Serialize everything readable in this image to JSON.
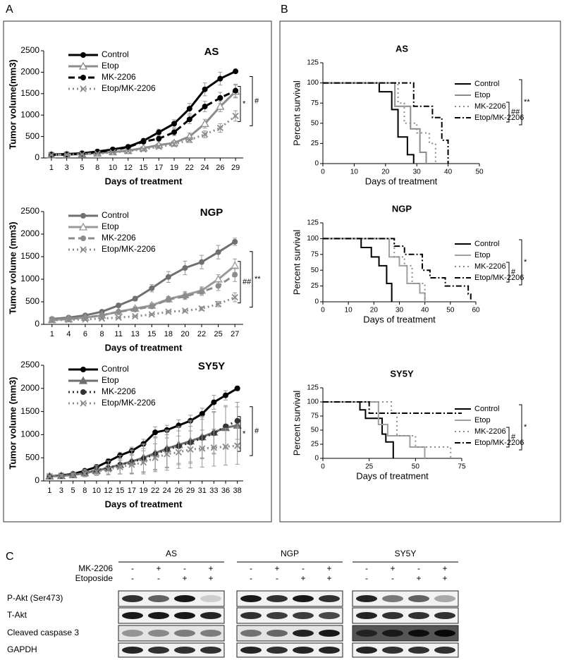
{
  "panels": [
    "A",
    "B"
  ],
  "chart_data": [
    {
      "type": "line",
      "title": "AS",
      "xlabel": "Days of treatment",
      "ylabel": "Tumor volume(mm3)",
      "categories": [
        "1",
        "3",
        "5",
        "8",
        "10",
        "12",
        "15",
        "17",
        "19",
        "22",
        "24",
        "26",
        "29"
      ],
      "ylim": [
        0,
        2500
      ],
      "yticks": [
        0,
        500,
        1000,
        1500,
        2000,
        2500
      ],
      "legend": "upper left",
      "series": [
        {
          "name": "Control",
          "color": "#000000",
          "dash": "solid",
          "marker": "circle",
          "values": [
            80,
            90,
            110,
            150,
            200,
            260,
            400,
            600,
            800,
            1150,
            1600,
            1850,
            2020
          ],
          "errors": [
            10,
            10,
            15,
            20,
            25,
            30,
            50,
            70,
            90,
            120,
            150,
            150,
            30
          ]
        },
        {
          "name": "Etop",
          "color": "#8c8c8c",
          "dash": "solid",
          "marker": "open-triangle",
          "values": [
            70,
            75,
            90,
            110,
            140,
            170,
            230,
            300,
            350,
            500,
            800,
            1200,
            1550
          ],
          "errors": [
            10,
            10,
            10,
            15,
            20,
            25,
            30,
            40,
            50,
            80,
            100,
            120,
            150
          ]
        },
        {
          "name": "MK-2206",
          "color": "#000000",
          "dash": "dashed",
          "marker": "circle",
          "values": [
            75,
            80,
            100,
            140,
            180,
            250,
            380,
            450,
            600,
            900,
            1200,
            1400,
            1570
          ],
          "errors": [
            10,
            10,
            15,
            20,
            25,
            30,
            50,
            60,
            80,
            100,
            120,
            130,
            150
          ]
        },
        {
          "name": "Etop/MK-2206",
          "color": "#8c8c8c",
          "dash": "dotted",
          "marker": "x",
          "values": [
            70,
            75,
            85,
            100,
            130,
            160,
            200,
            260,
            320,
            420,
            550,
            700,
            980
          ],
          "errors": [
            10,
            10,
            10,
            15,
            20,
            20,
            30,
            40,
            50,
            60,
            80,
            100,
            120
          ]
        }
      ],
      "annotations": [
        "*",
        "#"
      ]
    },
    {
      "type": "line",
      "title": "NGP",
      "xlabel": "Days of treatment",
      "ylabel": "Tumor volume (mm3)",
      "categories": [
        "1",
        "4",
        "6",
        "8",
        "11",
        "13",
        "15",
        "18",
        "20",
        "22",
        "25",
        "27"
      ],
      "ylim": [
        0,
        2500
      ],
      "yticks": [
        0,
        500,
        1000,
        1500,
        2000,
        2500
      ],
      "legend": "upper left",
      "series": [
        {
          "name": "Control",
          "color": "#707070",
          "dash": "solid",
          "marker": "circle",
          "values": [
            120,
            150,
            200,
            280,
            420,
            570,
            800,
            1050,
            1250,
            1380,
            1600,
            1830
          ],
          "errors": [
            10,
            15,
            20,
            30,
            40,
            50,
            80,
            120,
            150,
            150,
            150,
            80
          ]
        },
        {
          "name": "Etop",
          "color": "#9a9a9a",
          "dash": "solid",
          "marker": "open-triangle",
          "values": [
            100,
            120,
            150,
            200,
            280,
            350,
            420,
            560,
            650,
            750,
            1000,
            1300
          ],
          "errors": [
            10,
            10,
            15,
            20,
            30,
            40,
            50,
            60,
            70,
            80,
            100,
            150
          ]
        },
        {
          "name": "MK-2206",
          "color": "#8c8c8c",
          "dash": "dashed",
          "marker": "circle",
          "values": [
            100,
            120,
            150,
            200,
            280,
            330,
            400,
            550,
            620,
            720,
            850,
            1100
          ],
          "errors": [
            10,
            10,
            15,
            20,
            30,
            40,
            50,
            60,
            70,
            80,
            100,
            150
          ]
        },
        {
          "name": "Etop/MK-2206",
          "color": "#8c8c8c",
          "dash": "dotted",
          "marker": "x",
          "values": [
            90,
            100,
            110,
            130,
            150,
            180,
            220,
            280,
            300,
            350,
            450,
            600
          ],
          "errors": [
            10,
            10,
            10,
            15,
            20,
            20,
            25,
            30,
            30,
            40,
            60,
            100
          ]
        }
      ],
      "annotations": [
        "##",
        "**"
      ]
    },
    {
      "type": "line",
      "title": "SY5Y",
      "xlabel": "Days of treatment",
      "ylabel": "Tumor volume (mm3)",
      "categories": [
        "1",
        "3",
        "5",
        "8",
        "10",
        "12",
        "15",
        "17",
        "19",
        "22",
        "24",
        "26",
        "29",
        "31",
        "33",
        "36",
        "38"
      ],
      "ylim": [
        0,
        2500
      ],
      "yticks": [
        0,
        500,
        1000,
        1500,
        2000,
        2500
      ],
      "legend": "upper left",
      "series": [
        {
          "name": "Control",
          "color": "#000000",
          "dash": "solid",
          "marker": "circle",
          "values": [
            100,
            120,
            150,
            220,
            300,
            420,
            550,
            650,
            800,
            1050,
            1100,
            1200,
            1300,
            1450,
            1700,
            1850,
            2000
          ],
          "errors": [
            20,
            20,
            30,
            40,
            50,
            60,
            70,
            80,
            100,
            120,
            100,
            120,
            120,
            120,
            150,
            100,
            50
          ]
        },
        {
          "name": "Etop",
          "color": "#6e6e6e",
          "dash": "solid",
          "marker": "triangle",
          "values": [
            100,
            110,
            130,
            170,
            220,
            280,
            350,
            420,
            500,
            600,
            700,
            780,
            860,
            950,
            1050,
            1150,
            1200
          ],
          "errors": [
            20,
            30,
            50,
            80,
            100,
            150,
            200,
            250,
            300,
            350,
            400,
            400,
            450,
            450,
            450,
            450,
            400
          ]
        },
        {
          "name": "MK-2206",
          "color": "#333333",
          "dash": "dotted",
          "marker": "circle",
          "values": [
            100,
            110,
            130,
            170,
            230,
            280,
            350,
            410,
            480,
            580,
            680,
            750,
            830,
            930,
            1030,
            1180,
            1300
          ],
          "errors": [
            20,
            30,
            50,
            80,
            100,
            150,
            200,
            250,
            300,
            350,
            400,
            400,
            450,
            450,
            450,
            450,
            400
          ]
        },
        {
          "name": "Etop/MK-2206",
          "color": "#8c8c8c",
          "dash": "dotted",
          "marker": "x",
          "values": [
            100,
            110,
            130,
            160,
            200,
            250,
            300,
            350,
            400,
            500,
            580,
            620,
            680,
            700,
            720,
            740,
            760
          ],
          "errors": [
            20,
            30,
            40,
            60,
            80,
            100,
            150,
            200,
            250,
            300,
            350,
            350,
            400,
            400,
            400,
            400,
            400
          ]
        }
      ],
      "annotations": [
        "*",
        "#"
      ]
    },
    {
      "type": "step",
      "title": "AS",
      "xlabel": "Days of treatment",
      "ylabel": "Percent survival",
      "xlim": [
        0,
        50
      ],
      "xticks": [
        0,
        10,
        20,
        30,
        40,
        50
      ],
      "ylim": [
        0,
        125
      ],
      "yticks": [
        0,
        25,
        50,
        75,
        100,
        125
      ],
      "legend": "right",
      "series": [
        {
          "name": "Control",
          "color": "#000000",
          "dash": "solid",
          "x": [
            0,
            18,
            22,
            24,
            27,
            29
          ],
          "values": [
            100,
            89,
            67,
            33,
            11,
            0
          ]
        },
        {
          "name": "Etop",
          "color": "#8c8c8c",
          "dash": "solid",
          "x": [
            0,
            23,
            28,
            31,
            33
          ],
          "values": [
            100,
            71,
            43,
            14,
            0
          ]
        },
        {
          "name": "MK-2206",
          "color": "#8c8c8c",
          "dash": "dotted",
          "x": [
            0,
            24,
            26,
            30,
            34,
            36
          ],
          "values": [
            100,
            75,
            50,
            38,
            25,
            0
          ]
        },
        {
          "name": "Etop/MK-2206",
          "color": "#000000",
          "dash": "dashdot",
          "x": [
            0,
            29,
            35,
            38,
            40
          ],
          "values": [
            100,
            71,
            57,
            29,
            0
          ]
        }
      ],
      "annotations": [
        "##",
        "**"
      ]
    },
    {
      "type": "step",
      "title": "NGP",
      "xlabel": "Days of treatment",
      "ylabel": "Percent survival",
      "xlim": [
        0,
        60
      ],
      "xticks": [
        0,
        10,
        20,
        30,
        40,
        50,
        60
      ],
      "ylim": [
        0,
        125
      ],
      "yticks": [
        0,
        25,
        50,
        75,
        100,
        125
      ],
      "legend": "right",
      "series": [
        {
          "name": "Control",
          "color": "#000000",
          "dash": "solid",
          "x": [
            0,
            15,
            19,
            22,
            25,
            27
          ],
          "values": [
            100,
            86,
            71,
            57,
            29,
            0
          ]
        },
        {
          "name": "Etop",
          "color": "#a0a0a0",
          "dash": "solid",
          "x": [
            0,
            26,
            30,
            33,
            38,
            40
          ],
          "values": [
            100,
            71,
            57,
            29,
            14,
            0
          ]
        },
        {
          "name": "MK-2206",
          "color": "#8c8c8c",
          "dash": "dotted",
          "x": [
            0,
            28,
            32,
            35,
            40
          ],
          "values": [
            100,
            71,
            57,
            29,
            0
          ]
        },
        {
          "name": "Etop/MK-2206",
          "color": "#000000",
          "dash": "dashdot",
          "x": [
            0,
            28,
            32,
            39,
            42,
            48,
            57,
            58
          ],
          "values": [
            100,
            88,
            75,
            50,
            38,
            25,
            12,
            0
          ]
        }
      ],
      "annotations": [
        "#",
        "*"
      ]
    },
    {
      "type": "step",
      "title": "SY5Y",
      "xlabel": "Days of treatment",
      "ylabel": "Percent survival",
      "xlim": [
        0,
        75
      ],
      "xticks": [
        0,
        25,
        50,
        75
      ],
      "ylim": [
        0,
        125
      ],
      "yticks": [
        0,
        25,
        50,
        75,
        100,
        125
      ],
      "legend": "right",
      "series": [
        {
          "name": "Control",
          "color": "#000000",
          "dash": "solid",
          "x": [
            0,
            20,
            23,
            32,
            34,
            38
          ],
          "values": [
            100,
            86,
            71,
            43,
            29,
            0
          ]
        },
        {
          "name": "Etop",
          "color": "#a0a0a0",
          "dash": "solid",
          "x": [
            0,
            30,
            35,
            47,
            55
          ],
          "values": [
            100,
            60,
            40,
            20,
            0
          ]
        },
        {
          "name": "MK-2206",
          "color": "#8c8c8c",
          "dash": "dotted",
          "x": [
            0,
            37,
            40,
            50,
            69
          ],
          "values": [
            100,
            80,
            40,
            20,
            0
          ]
        },
        {
          "name": "Etop/MK-2206",
          "color": "#000000",
          "dash": "dashdot",
          "x": [
            0,
            25,
            75
          ],
          "values": [
            100,
            80,
            80
          ]
        }
      ],
      "annotations": [
        "#",
        "*"
      ]
    }
  ],
  "blot": {
    "label": "C",
    "groups": [
      "AS",
      "NGP",
      "SY5Y"
    ],
    "treatments": [
      {
        "name": "MK-2206",
        "signs": [
          "-",
          "+",
          "-",
          "+"
        ]
      },
      {
        "name": "Etoposide",
        "signs": [
          "-",
          "-",
          "+",
          "+"
        ]
      }
    ],
    "rows": [
      "P-Akt (Ser473)",
      "T-Akt",
      "Cleaved caspase 3",
      "GAPDH"
    ]
  }
}
